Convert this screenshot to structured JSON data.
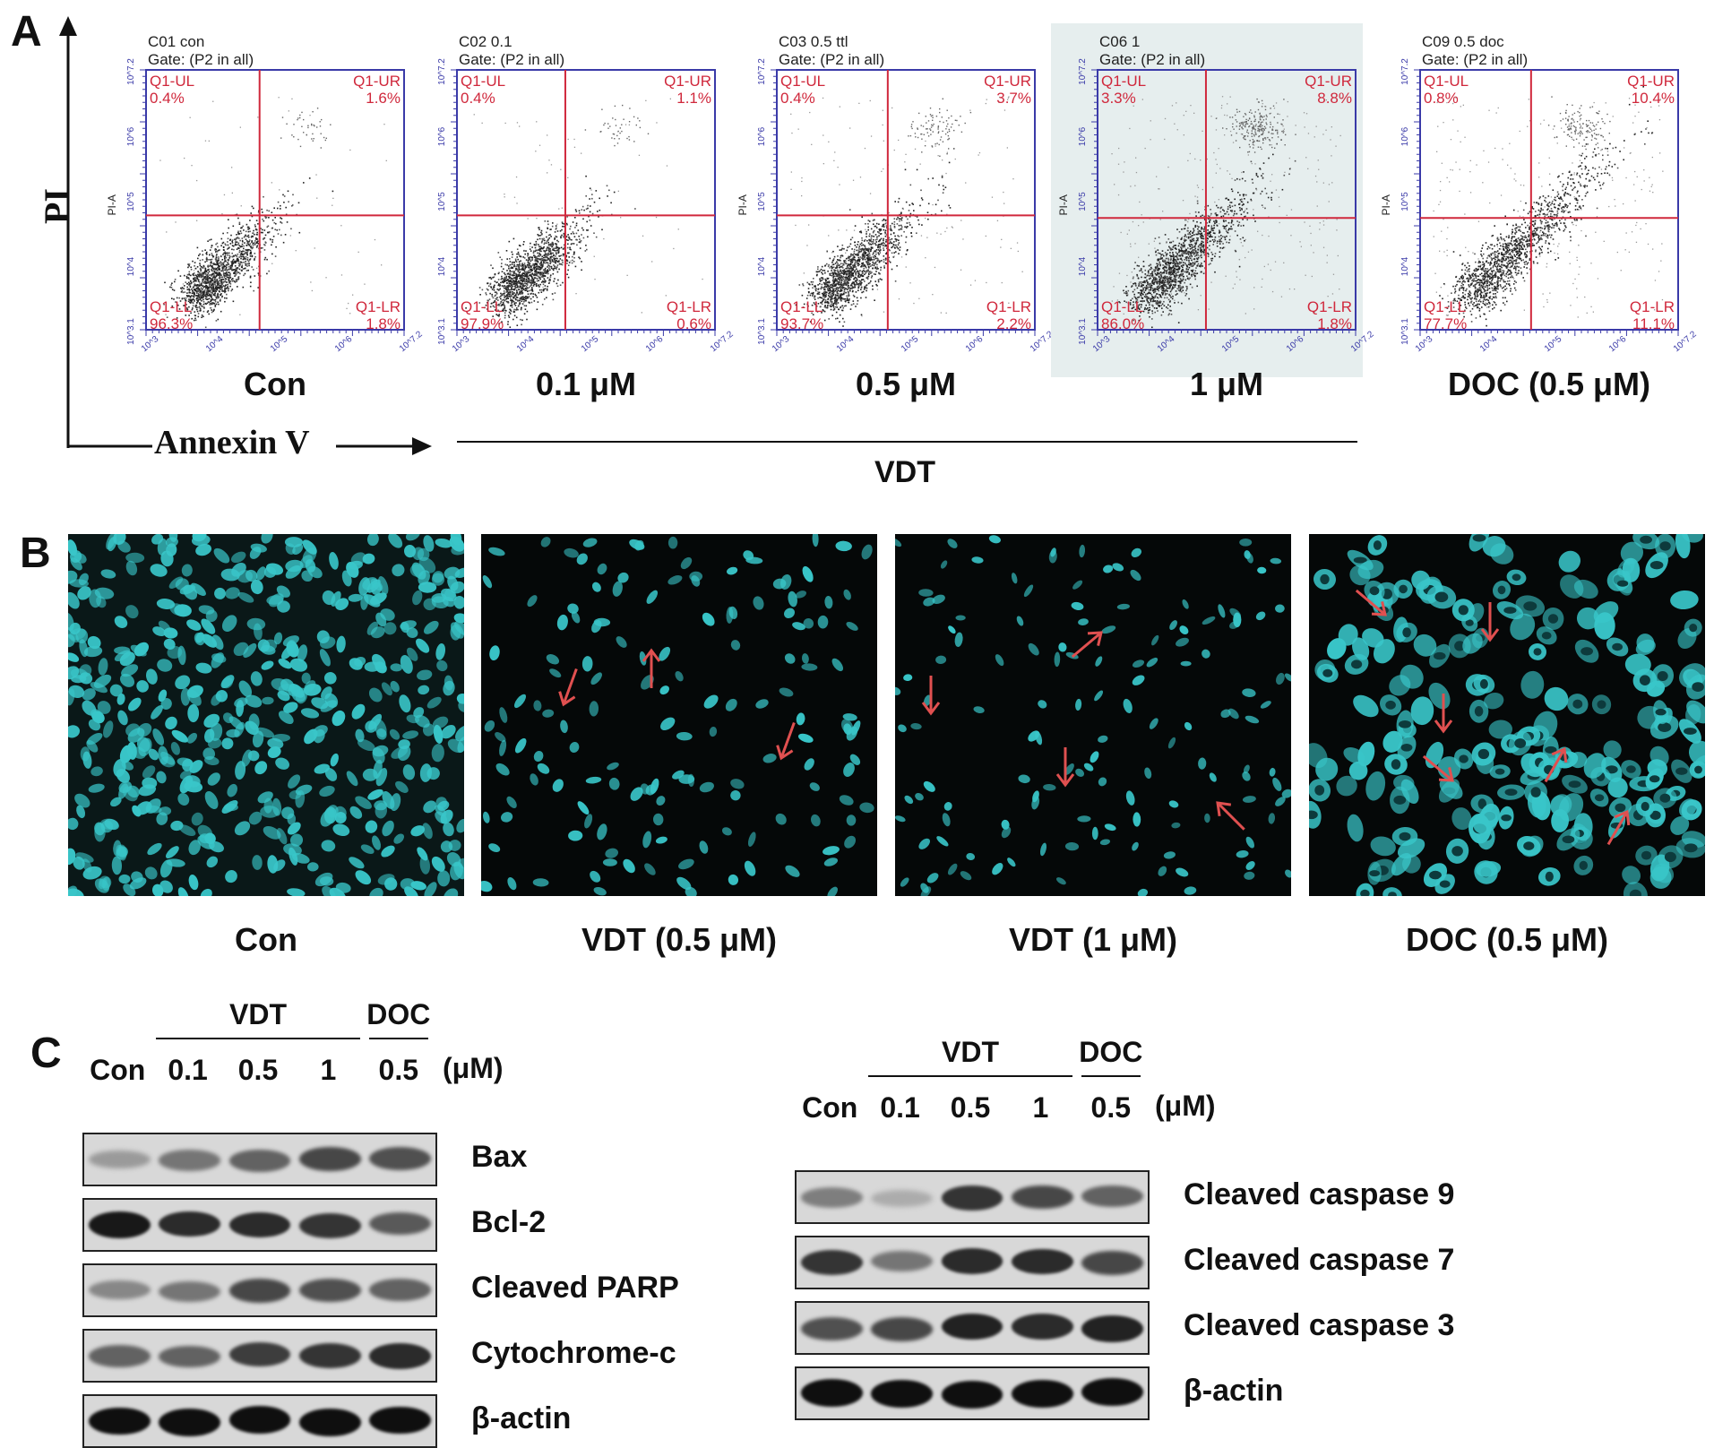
{
  "panels": {
    "a": "A",
    "b": "B",
    "c": "C"
  },
  "flow": {
    "axis_y": "PI",
    "axis_x": "Annexin V",
    "group_label": "VDT",
    "plots": [
      {
        "title": "C01 con",
        "gate": "Gate: (P2 in all)",
        "ylab": "PI-A",
        "ul": "0.4%",
        "ur": "1.6%",
        "ll": "96.3%",
        "lr": "1.8%",
        "condition": "Con",
        "shaded": false
      },
      {
        "title": "C02 0.1",
        "gate": "Gate: (P2 in all)",
        "ylab": "",
        "ul": "0.4%",
        "ur": "1.1%",
        "ll": "97.9%",
        "lr": "0.6%",
        "condition": "0.1 μM",
        "shaded": false
      },
      {
        "title": "C03 0.5 ttl",
        "gate": "Gate: (P2 in all)",
        "ylab": "PI-A",
        "ul": "0.4%",
        "ur": "3.7%",
        "ll": "93.7%",
        "lr": "2.2%",
        "condition": "0.5 μM",
        "shaded": false
      },
      {
        "title": "C06 1",
        "gate": "Gate: (P2 in all)",
        "ylab": "PI-A",
        "ul": "3.3%",
        "ur": "8.8%",
        "ll": "86.0%",
        "lr": "1.8%",
        "condition": "1 μM",
        "shaded": true
      },
      {
        "title": "C09 0.5 doc",
        "gate": "Gate: (P2 in all)",
        "ylab": "PI-A",
        "ul": "0.8%",
        "ur": "10.4%",
        "ll": "77.7%",
        "lr": "11.1%",
        "condition": "DOC (0.5 μM)",
        "shaded": false
      }
    ],
    "quad_names": {
      "ul": "Q1-UL",
      "ur": "Q1-UR",
      "ll": "Q1-LL",
      "lr": "Q1-LR"
    },
    "yticks": [
      "10^3.1",
      "10^4",
      "10^5",
      "10^6",
      "10^7.2"
    ],
    "xticks": [
      "10^3",
      "10^4",
      "10^5",
      "10^6",
      "10^7.2"
    ]
  },
  "micro": {
    "labels": [
      "Con",
      "VDT (0.5 μM)",
      "VDT (1 μM)",
      "DOC (0.5 μM)"
    ],
    "nucleus_color": "#39c6c9",
    "arrow_color": "#e05050"
  },
  "western": {
    "left": {
      "group_vdt": "VDT",
      "group_doc": "DOC",
      "lanes": [
        "Con",
        "0.1",
        "0.5",
        "1",
        "0.5"
      ],
      "unit": "(μM)",
      "proteins": [
        "Bax",
        "Bcl-2",
        "Cleaved PARP",
        "Cytochrome-c",
        "β-actin"
      ]
    },
    "right": {
      "group_vdt": "VDT",
      "group_doc": "DOC",
      "lanes": [
        "Con",
        "0.1",
        "0.5",
        "1",
        "0.5"
      ],
      "unit": "(μM)",
      "proteins": [
        "Cleaved caspase 9",
        "Cleaved caspase 7",
        "Cleaved caspase 3",
        "β-actin"
      ]
    }
  }
}
